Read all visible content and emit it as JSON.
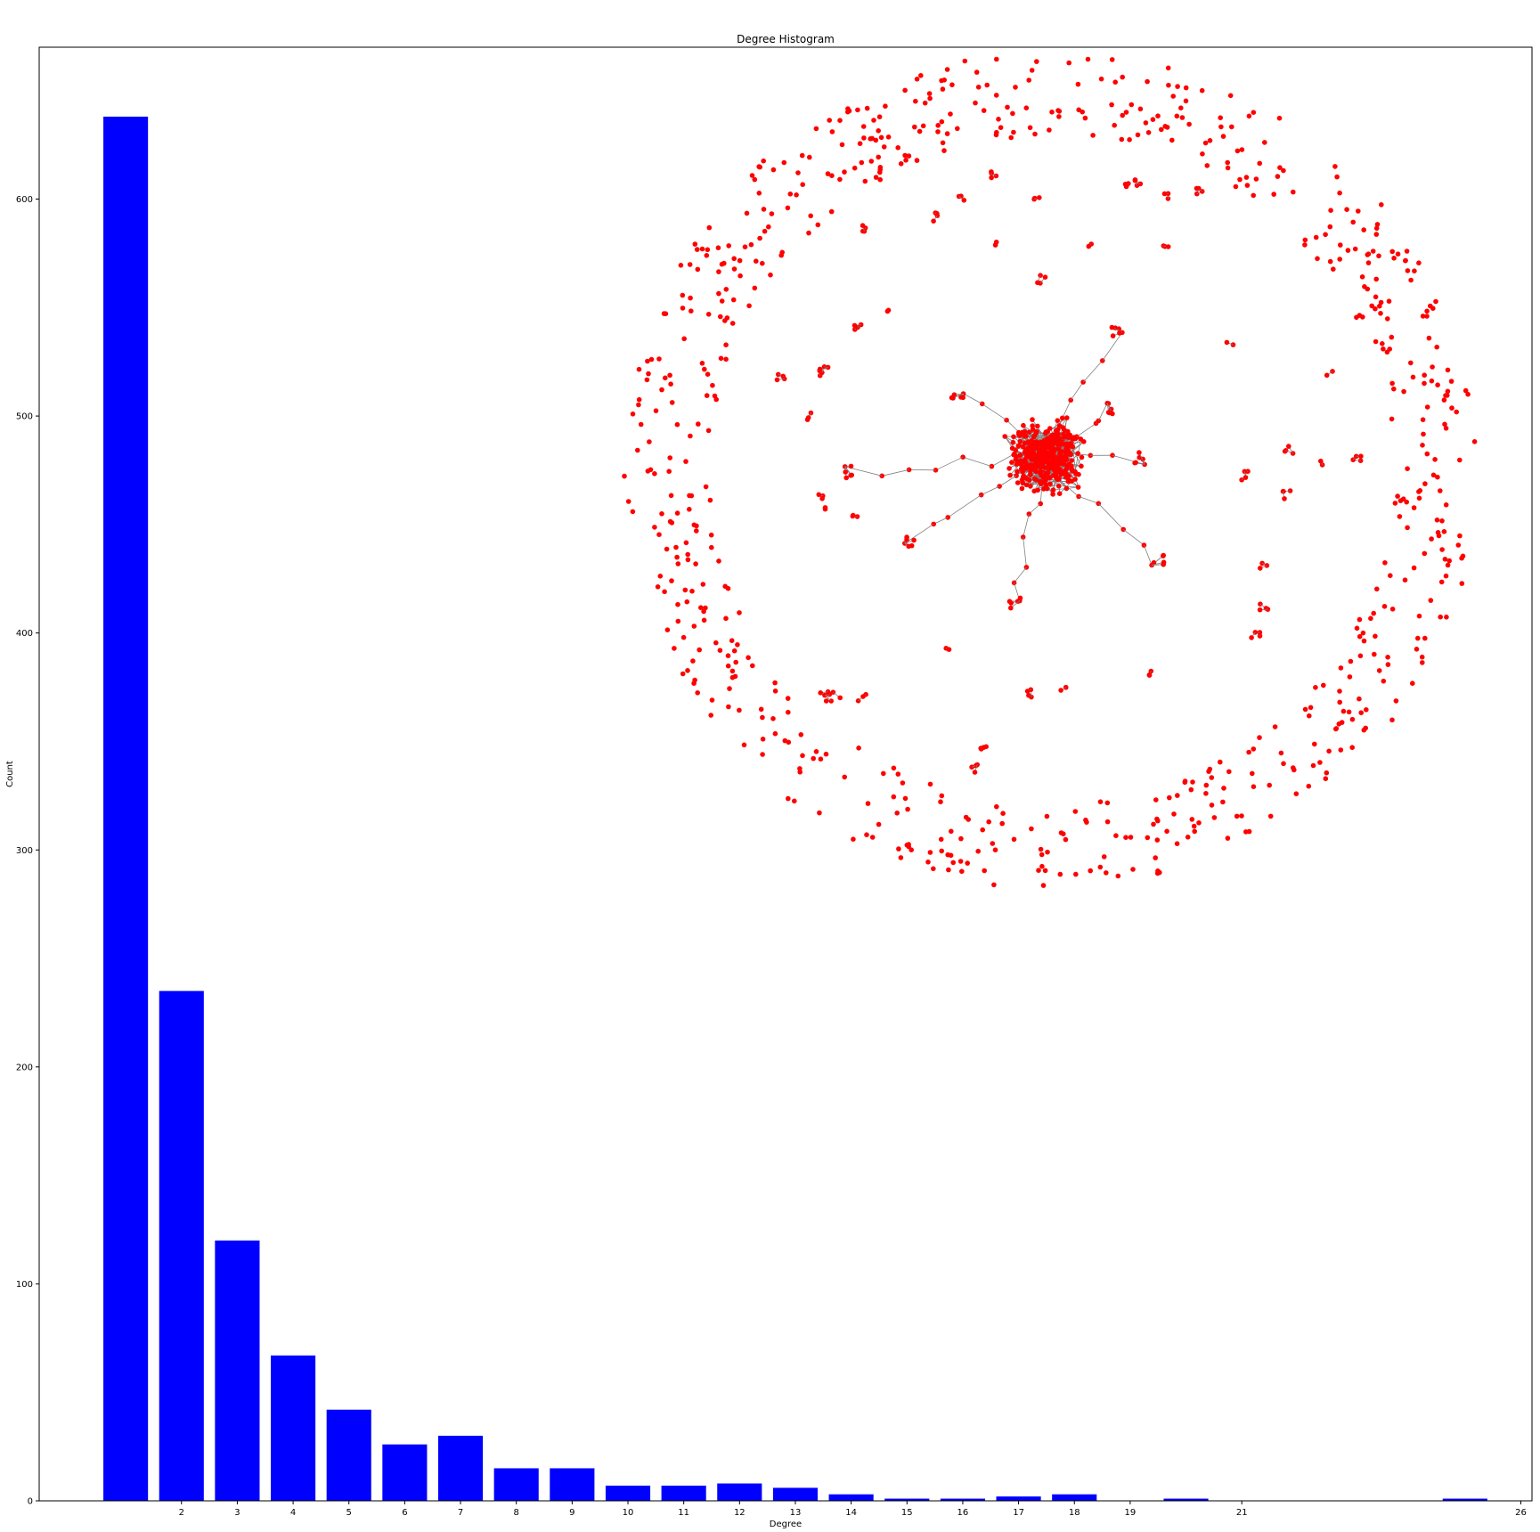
{
  "chart_data": {
    "type": "bar",
    "title": "Degree Histogram",
    "xlabel": "Degree",
    "ylabel": "Count",
    "bar_color": "#0000ff",
    "bars": [
      {
        "degree": 1,
        "count": 638
      },
      {
        "degree": 2,
        "count": 235
      },
      {
        "degree": 3,
        "count": 120
      },
      {
        "degree": 4,
        "count": 67
      },
      {
        "degree": 5,
        "count": 42
      },
      {
        "degree": 6,
        "count": 26
      },
      {
        "degree": 7,
        "count": 30
      },
      {
        "degree": 8,
        "count": 15
      },
      {
        "degree": 9,
        "count": 15
      },
      {
        "degree": 10,
        "count": 7
      },
      {
        "degree": 11,
        "count": 7
      },
      {
        "degree": 12,
        "count": 8
      },
      {
        "degree": 13,
        "count": 6
      },
      {
        "degree": 14,
        "count": 3
      },
      {
        "degree": 15,
        "count": 1
      },
      {
        "degree": 16,
        "count": 1
      },
      {
        "degree": 17,
        "count": 2
      },
      {
        "degree": 18,
        "count": 3
      },
      {
        "degree": 20,
        "count": 1
      },
      {
        "degree": 25,
        "count": 1
      }
    ],
    "xticks": [
      2,
      3,
      4,
      5,
      6,
      7,
      8,
      9,
      10,
      11,
      12,
      13,
      14,
      15,
      16,
      17,
      18,
      19,
      21,
      26
    ],
    "yticks": [
      0,
      100,
      200,
      300,
      400,
      500,
      600
    ],
    "xlim": [
      -0.55,
      26.2
    ],
    "ylim": [
      0,
      670
    ],
    "inset": {
      "type": "network",
      "node_color": "#ff0000",
      "edge_color": "#808080"
    }
  }
}
